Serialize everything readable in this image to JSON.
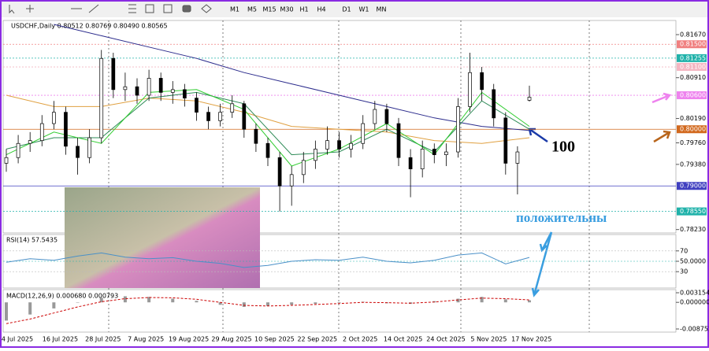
{
  "toolbar": {
    "timeframes": [
      "M1",
      "M5",
      "M15",
      "M30",
      "H1",
      "H4",
      "D1",
      "W1",
      "MN"
    ]
  },
  "chart_data": [
    {
      "type": "candlestick",
      "title": "USDCHF,Daily  0.80512 0.80769 0.80490 0.80565",
      "x_axis_labels": [
        "4 Jul 2025",
        "16 Jul 2025",
        "28 Jul 2025",
        "7 Aug 2025",
        "19 Aug 2025",
        "29 Aug 2025",
        "10 Sep 2025",
        "22 Sep 2025",
        "2 Oct 2025",
        "14 Oct 2025",
        "24 Oct 2025",
        "5 Nov 2025",
        "17 Nov 2025"
      ],
      "open": [
        0.794,
        0.795,
        0.7975,
        0.798,
        0.801,
        0.803,
        0.797,
        0.795,
        0.7985,
        0.8125,
        0.807,
        0.8075,
        0.806,
        0.809,
        0.8065,
        0.807,
        0.8055,
        0.803,
        0.8015,
        0.803,
        0.8045,
        0.8,
        0.7975,
        0.795,
        0.79,
        0.792,
        0.7945,
        0.7965,
        0.798,
        0.7965,
        0.7975,
        0.801,
        0.8035,
        0.801,
        0.795,
        0.793,
        0.7965,
        0.7955,
        0.796,
        0.804,
        0.81,
        0.807,
        0.802,
        0.794,
        0.80512
      ],
      "high": [
        0.7965,
        0.799,
        0.7995,
        0.8025,
        0.805,
        0.804,
        0.7985,
        0.8,
        0.814,
        0.8135,
        0.81,
        0.809,
        0.8105,
        0.81,
        0.8085,
        0.808,
        0.8065,
        0.804,
        0.8045,
        0.806,
        0.805,
        0.801,
        0.7985,
        0.796,
        0.7935,
        0.796,
        0.798,
        0.8005,
        0.7995,
        0.799,
        0.8025,
        0.805,
        0.8045,
        0.802,
        0.7965,
        0.798,
        0.7975,
        0.7975,
        0.8055,
        0.8135,
        0.811,
        0.808,
        0.803,
        0.797,
        0.80769
      ],
      "low": [
        0.7925,
        0.794,
        0.796,
        0.797,
        0.8,
        0.7955,
        0.792,
        0.794,
        0.7975,
        0.8055,
        0.805,
        0.8045,
        0.805,
        0.805,
        0.8045,
        0.804,
        0.8015,
        0.8,
        0.8005,
        0.802,
        0.7985,
        0.796,
        0.7935,
        0.7855,
        0.7865,
        0.7905,
        0.793,
        0.7955,
        0.795,
        0.795,
        0.7965,
        0.8,
        0.7995,
        0.7935,
        0.788,
        0.7915,
        0.794,
        0.7935,
        0.795,
        0.803,
        0.805,
        0.8005,
        0.792,
        0.7885,
        0.8049
      ],
      "close": [
        0.795,
        0.7975,
        0.798,
        0.801,
        0.803,
        0.797,
        0.795,
        0.7985,
        0.8125,
        0.807,
        0.8075,
        0.806,
        0.809,
        0.8065,
        0.807,
        0.8055,
        0.803,
        0.8015,
        0.803,
        0.8045,
        0.8,
        0.7975,
        0.795,
        0.79,
        0.792,
        0.7945,
        0.7965,
        0.798,
        0.7965,
        0.7975,
        0.801,
        0.8035,
        0.801,
        0.795,
        0.793,
        0.7965,
        0.7955,
        0.796,
        0.804,
        0.81,
        0.807,
        0.802,
        0.794,
        0.796,
        0.80565
      ],
      "series": [
        {
          "color": "#2b2b8c",
          "values": [
            null,
            0.8185,
            0.8165,
            0.8145,
            0.8125,
            0.81,
            0.808,
            0.806,
            0.804,
            0.802,
            0.8005,
            0.7998
          ]
        },
        {
          "color": "#e0a040",
          "values": [
            0.806,
            0.804,
            0.804,
            0.8055,
            0.805,
            0.803,
            0.8005,
            0.8,
            0.7995,
            0.798,
            0.7975,
            0.7985
          ]
        },
        {
          "color": "#2e8b57",
          "values": [
            0.7965,
            0.7985,
            0.7985,
            0.8055,
            0.8065,
            0.8045,
            0.7955,
            0.796,
            0.8,
            0.796,
            0.805,
            0.8
          ]
        },
        {
          "color": "#32cd32",
          "values": [
            0.7955,
            0.7995,
            0.7975,
            0.8065,
            0.807,
            0.8035,
            0.7935,
            0.7965,
            0.801,
            0.7955,
            0.8065,
            0.8005
          ]
        }
      ],
      "ylim": [
        0.7817,
        0.8192
      ],
      "yticks": [
        {
          "value": 0.8167,
          "label": "0.81670"
        },
        {
          "value": 0.8091,
          "label": "0.80910"
        },
        {
          "value": 0.8019,
          "label": "0.80190"
        },
        {
          "value": 0.7976,
          "label": "0.79760"
        },
        {
          "value": 0.7938,
          "label": "0.79380"
        },
        {
          "value": 0.7823,
          "label": "0.78230"
        }
      ],
      "levels": [
        {
          "value": 0.815,
          "label": "0.81500",
          "color": "#f08080"
        },
        {
          "value": 0.81255,
          "label": "0.81255",
          "color": "#20b2aa"
        },
        {
          "value": 0.811,
          "label": "0.81100",
          "color": "#f4b6c2"
        },
        {
          "value": 0.806,
          "label": "0.80600",
          "color": "#ee82ee"
        },
        {
          "value": 0.8,
          "label": "0.80000",
          "color": "#d2691e"
        },
        {
          "value": 0.79,
          "label": "0.79000",
          "color": "#4040c0"
        },
        {
          "value": 0.7855,
          "label": "0.78550",
          "color": "#20b2aa"
        }
      ],
      "annotations": [
        "100",
        "положительны"
      ]
    },
    {
      "type": "line",
      "title": "RSI(14) 57.5435",
      "color": "#4a90c8",
      "values": [
        48,
        55,
        52,
        60,
        66,
        58,
        55,
        57,
        50,
        46,
        38,
        42,
        50,
        53,
        52,
        58,
        50,
        47,
        52,
        62,
        66,
        45,
        57.5
      ],
      "ylim": [
        0,
        100
      ],
      "yticks": [
        70,
        {
          "value": 50,
          "label": "50.0000"
        },
        30
      ]
    },
    {
      "type": "macd",
      "title": "MACD(12,26,9) 0.000680 0.000793",
      "values": [
        -0.006,
        -0.004,
        -0.002,
        0.0,
        0.0015,
        0.002,
        0.0018,
        0.0012,
        0.0005,
        -0.0008,
        -0.0015,
        -0.0012,
        -0.0008,
        -0.0005,
        -0.0002,
        0.0002,
        -0.0003,
        -0.0005,
        0.0004,
        0.0012,
        0.0018,
        0.001,
        0.00068
      ],
      "signal": [
        -0.007,
        -0.0055,
        -0.0035,
        -0.0015,
        0.0002,
        0.0012,
        0.0016,
        0.0015,
        0.001,
        0.0,
        -0.001,
        -0.0012,
        -0.001,
        -0.0007,
        -0.0004,
        0.0,
        -0.0001,
        -0.0003,
        0.0001,
        0.0008,
        0.0014,
        0.0012,
        0.000793
      ],
      "ylim": [
        -0.008752,
        0.003154
      ],
      "yticks": [
        0.003154,
        {
          "value": 0,
          "label": "0.000000"
        },
        -0.008752
      ]
    }
  ]
}
